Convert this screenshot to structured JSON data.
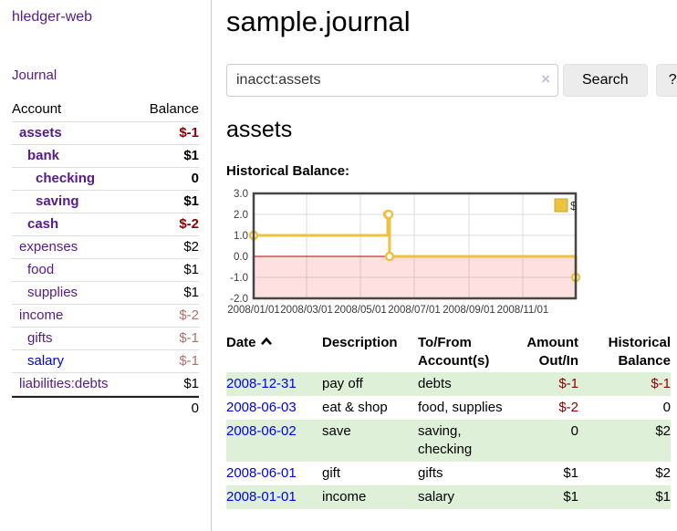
{
  "app": {
    "brand": "hledger-web",
    "nav_journal": "Journal"
  },
  "sidebar": {
    "header": {
      "account": "Account",
      "balance": "Balance"
    },
    "accounts": [
      {
        "name": "assets",
        "level": 1,
        "bold": true,
        "balance": "$-1",
        "neg": true
      },
      {
        "name": "bank",
        "level": 2,
        "bold": true,
        "balance": "$1"
      },
      {
        "name": "checking",
        "level": 3,
        "bold": true,
        "balance": "0"
      },
      {
        "name": "saving",
        "level": 3,
        "bold": true,
        "balance": "$1"
      },
      {
        "name": "cash",
        "level": 2,
        "bold": true,
        "balance": "$-2",
        "neg": true
      },
      {
        "name": "expenses",
        "level": 1,
        "balance": "$2"
      },
      {
        "name": "food",
        "level": 2,
        "balance": "$1"
      },
      {
        "name": "supplies",
        "level": 2,
        "balance": "$1"
      },
      {
        "name": "income",
        "level": 1,
        "balance": "$-2",
        "neg": true,
        "light": true
      },
      {
        "name": "gifts",
        "level": 2,
        "balance": "$-1",
        "neg": true,
        "light": true
      },
      {
        "name": "salary",
        "level": 2,
        "balance": "$-1",
        "neg": true,
        "light": true,
        "unvisited": true
      },
      {
        "name": "liabilities:debts",
        "level": 1,
        "balance": "$1"
      }
    ],
    "total": "0"
  },
  "main": {
    "title": "sample.journal",
    "search": {
      "value": "inacct:assets",
      "clear_icon": "×",
      "button": "Search",
      "help": "?"
    },
    "account_heading": "assets"
  },
  "chart_data": {
    "type": "line",
    "title": "Historical Balance:",
    "series": [
      {
        "name": "$",
        "color": "#edc240",
        "step": true,
        "points": [
          [
            "2008-01-01",
            1
          ],
          [
            "2008-06-01",
            2
          ],
          [
            "2008-06-02",
            2
          ],
          [
            "2008-06-03",
            0
          ],
          [
            "2008-12-31",
            -1
          ]
        ]
      }
    ],
    "x_range": [
      "2008-01-01",
      "2008-12-31"
    ],
    "x_ticks": [
      {
        "date": "2008-01-01",
        "label": "2008/01/01"
      },
      {
        "date": "2008-03-01",
        "label": "2008/03/01"
      },
      {
        "date": "2008-05-01",
        "label": "2008/05/01"
      },
      {
        "date": "2008-07-01",
        "label": "2008/07/01"
      },
      {
        "date": "2008-09-01",
        "label": "2008/09/01"
      },
      {
        "date": "2008-11-01",
        "label": "2008/11/01"
      }
    ],
    "y_ticks": [
      {
        "v": 3,
        "label": "3.0"
      },
      {
        "v": 2,
        "label": "2.0"
      },
      {
        "v": 1,
        "label": "1.0"
      },
      {
        "v": 0,
        "label": "0.0"
      },
      {
        "v": -1,
        "label": "-1.0"
      },
      {
        "v": -2,
        "label": "-2.0"
      }
    ],
    "ylim": [
      -2,
      3
    ],
    "grid": true,
    "legend_position": "top-right",
    "negative_region_color": "rgba(255,0,0,0.12)",
    "zero_line_color": "#bb0000",
    "border_color": "#464646",
    "gridline_color": "#dcdcdc"
  },
  "table": {
    "headers": [
      "Date",
      "Description",
      "To/From Account(s)",
      "Amount Out/In",
      "Historical Balance"
    ],
    "rows": [
      {
        "date": "2008-12-31",
        "description": "pay off",
        "accounts": "debts",
        "amount": "$-1",
        "amount_neg": true,
        "balance": "$-1",
        "balance_neg": true
      },
      {
        "date": "2008-06-03",
        "description": "eat & shop",
        "accounts": "food, supplies",
        "amount": "$-2",
        "amount_neg": true,
        "balance": "0",
        "balance_neg": false
      },
      {
        "date": "2008-06-02",
        "description": "save",
        "accounts": "saving, checking",
        "amount": "0",
        "amount_neg": false,
        "balance": "$2",
        "balance_neg": false
      },
      {
        "date": "2008-06-01",
        "description": "gift",
        "accounts": "gifts",
        "amount": "$1",
        "amount_neg": false,
        "balance": "$2",
        "balance_neg": false
      },
      {
        "date": "2008-01-01",
        "description": "income",
        "accounts": "salary",
        "amount": "$1",
        "amount_neg": false,
        "balance": "$1",
        "balance_neg": false
      }
    ]
  }
}
